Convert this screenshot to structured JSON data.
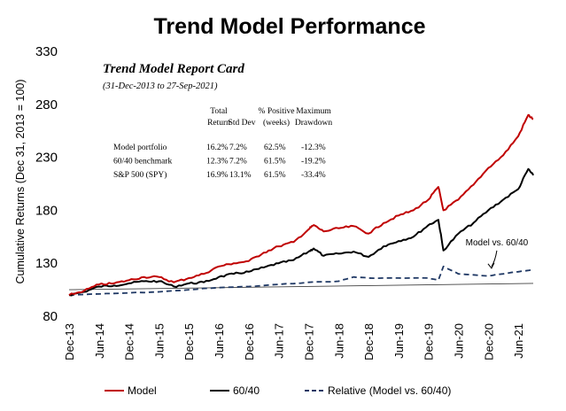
{
  "chart_data": {
    "type": "line",
    "title": "Trend Model Performance",
    "ylabel": "Cumulative Returns (Dec 31, 2013 = 100)",
    "ylim": [
      80,
      330
    ],
    "yticks": [
      80,
      130,
      180,
      230,
      280,
      330
    ],
    "xlim": [
      "2013-12",
      "2021-09"
    ],
    "xticks": [
      "Dec-13",
      "Jun-14",
      "Dec-14",
      "Jun-15",
      "Dec-15",
      "Jun-16",
      "Dec-16",
      "Jun-17",
      "Dec-17",
      "Jun-18",
      "Dec-18",
      "Jun-19",
      "Dec-19",
      "Jun-20",
      "Dec-20",
      "Jun-21"
    ],
    "grid": false,
    "legend_position": "bottom",
    "colors": {
      "model": "#c00000",
      "sixty_forty": "#000000",
      "relative": "#1f3864",
      "reference": "#404040"
    },
    "series": [
      {
        "name": "Model",
        "style": "solid",
        "x": [
          "2013-12",
          "2014-03",
          "2014-06",
          "2014-09",
          "2014-12",
          "2015-03",
          "2015-06",
          "2015-09",
          "2015-12",
          "2016-03",
          "2016-06",
          "2016-09",
          "2016-12",
          "2017-03",
          "2017-06",
          "2017-09",
          "2017-12",
          "2018-01",
          "2018-03",
          "2018-06",
          "2018-09",
          "2018-12",
          "2019-03",
          "2019-06",
          "2019-09",
          "2019-12",
          "2020-02",
          "2020-03",
          "2020-06",
          "2020-09",
          "2020-12",
          "2021-03",
          "2021-06",
          "2021-08",
          "2021-09"
        ],
        "values": [
          100,
          104,
          110,
          111,
          114,
          117,
          117,
          112,
          116,
          120,
          127,
          130,
          132,
          140,
          146,
          150,
          162,
          166,
          160,
          163,
          165,
          158,
          168,
          175,
          180,
          190,
          202,
          180,
          190,
          204,
          220,
          232,
          250,
          270,
          266
        ]
      },
      {
        "name": "60/40",
        "style": "solid",
        "x": [
          "2013-12",
          "2014-03",
          "2014-06",
          "2014-09",
          "2014-12",
          "2015-03",
          "2015-06",
          "2015-09",
          "2015-12",
          "2016-03",
          "2016-06",
          "2016-09",
          "2016-12",
          "2017-03",
          "2017-06",
          "2017-09",
          "2017-12",
          "2018-01",
          "2018-03",
          "2018-06",
          "2018-09",
          "2018-12",
          "2019-03",
          "2019-06",
          "2019-09",
          "2019-12",
          "2020-02",
          "2020-03",
          "2020-06",
          "2020-09",
          "2020-12",
          "2021-03",
          "2021-06",
          "2021-08",
          "2021-09"
        ],
        "values": [
          100,
          103,
          108,
          109,
          111,
          113,
          113,
          108,
          111,
          112,
          117,
          120,
          122,
          126,
          130,
          133,
          141,
          144,
          137,
          139,
          141,
          136,
          146,
          151,
          155,
          166,
          171,
          142,
          158,
          168,
          180,
          190,
          200,
          219,
          213
        ]
      },
      {
        "name": "Relative (Model vs. 60/40)",
        "style": "dashed",
        "x": [
          "2013-12",
          "2014-06",
          "2014-12",
          "2015-06",
          "2015-12",
          "2016-06",
          "2016-12",
          "2017-06",
          "2017-12",
          "2018-06",
          "2018-09",
          "2018-12",
          "2019-06",
          "2019-12",
          "2020-02",
          "2020-03",
          "2020-06",
          "2020-12",
          "2021-03",
          "2021-06",
          "2021-09"
        ],
        "values": [
          100,
          101,
          102,
          103,
          105,
          107,
          108,
          110,
          112,
          113,
          117,
          116,
          116,
          116,
          114,
          127,
          120,
          118,
          120,
          122,
          124
        ]
      }
    ],
    "reference_line": {
      "x": [
        "2013-12",
        "2021-09"
      ],
      "values": [
        105,
        111
      ]
    },
    "annotation": {
      "text": "Model vs. 60/40",
      "x": "2021-01",
      "y": 147
    },
    "report_card": {
      "title": "Trend Model Report Card",
      "subtitle": "(31-Dec-2013 to 27-Sep-2021)",
      "headers": [
        [
          "Total",
          "Return"
        ],
        [
          "",
          "Std Dev"
        ],
        [
          "% Positive",
          "(weeks)"
        ],
        [
          "Maximum",
          "Drawdown"
        ]
      ],
      "rows": [
        {
          "label": "Model portfolio",
          "values": [
            "16.2%",
            "7.2%",
            "62.5%",
            "-12.3%"
          ]
        },
        {
          "label": "60/40 benchmark",
          "values": [
            "12.3%",
            "7.2%",
            "61.5%",
            "-19.2%"
          ]
        },
        {
          "label": "S&P 500 (SPY)",
          "values": [
            "16.9%",
            "13.1%",
            "61.5%",
            "-33.4%"
          ]
        }
      ]
    }
  }
}
